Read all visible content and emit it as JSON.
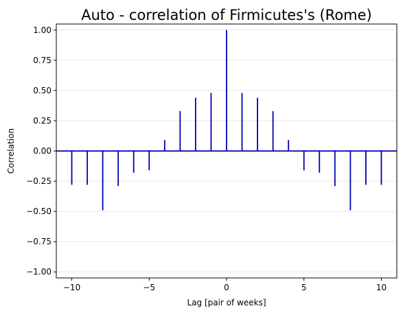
{
  "chart_data": {
    "type": "bar",
    "title": "Auto - correlation of Firmicutes's (Rome)",
    "xlabel": "Lag [pair of weeks]",
    "ylabel": "Correlation",
    "xlim": [
      -11,
      11
    ],
    "ylim": [
      -1.05,
      1.05
    ],
    "xticks": [
      -10,
      -5,
      0,
      5,
      10
    ],
    "xtick_labels": [
      "−10",
      "−5",
      "0",
      "5",
      "10"
    ],
    "yticks": [
      -1.0,
      -0.75,
      -0.5,
      -0.25,
      0.0,
      0.25,
      0.5,
      0.75,
      1.0
    ],
    "ytick_labels": [
      "−1.00",
      "−0.75",
      "−0.50",
      "−0.25",
      "0.00",
      "0.25",
      "0.50",
      "0.75",
      "1.00"
    ],
    "grid": "horizontal",
    "legend": "none",
    "color": "#0000b4",
    "zero_line_color": "#0000b4",
    "x": [
      -10,
      -9,
      -8,
      -7,
      -6,
      -5,
      -4,
      -3,
      -2,
      -1,
      0,
      1,
      2,
      3,
      4,
      5,
      6,
      7,
      8,
      9,
      10
    ],
    "values": [
      -0.28,
      -0.28,
      -0.49,
      -0.29,
      -0.18,
      -0.16,
      0.09,
      0.33,
      0.44,
      0.48,
      1.0,
      0.48,
      0.44,
      0.33,
      0.09,
      -0.16,
      -0.18,
      -0.29,
      -0.49,
      -0.28,
      -0.28
    ]
  }
}
